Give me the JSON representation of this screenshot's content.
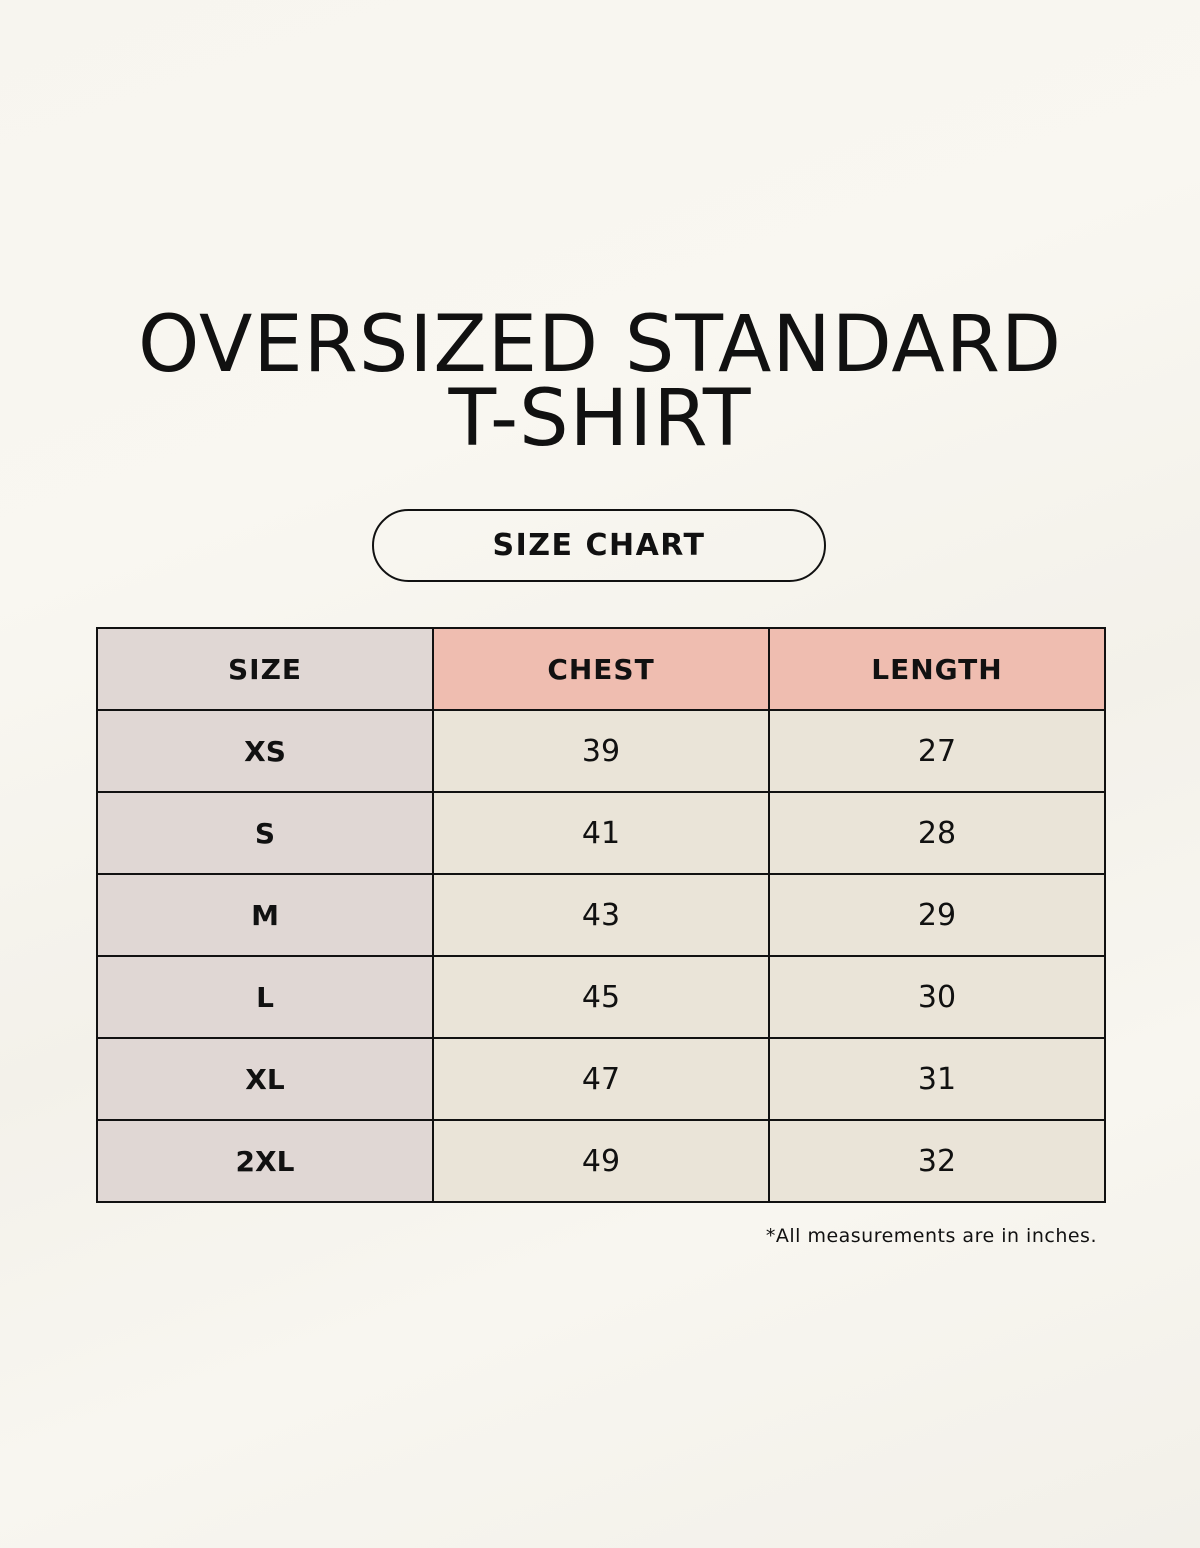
{
  "title_line1": "OVERSIZED STANDARD",
  "title_line2": "T-SHIRT",
  "badge": "SIZE CHART",
  "table": {
    "headers": [
      "SIZE",
      "CHEST",
      "LENGTH"
    ],
    "rows": [
      [
        "XS",
        "39",
        "27"
      ],
      [
        "S",
        "41",
        "28"
      ],
      [
        "M",
        "43",
        "29"
      ],
      [
        "L",
        "45",
        "30"
      ],
      [
        "XL",
        "47",
        "31"
      ],
      [
        "2XL",
        "49",
        "32"
      ]
    ]
  },
  "note": "*All measurements are in inches.",
  "colors": {
    "size_column": "#e0d7d4",
    "header_accent": "#efbdb0",
    "value_cells": "#eae4d8"
  }
}
